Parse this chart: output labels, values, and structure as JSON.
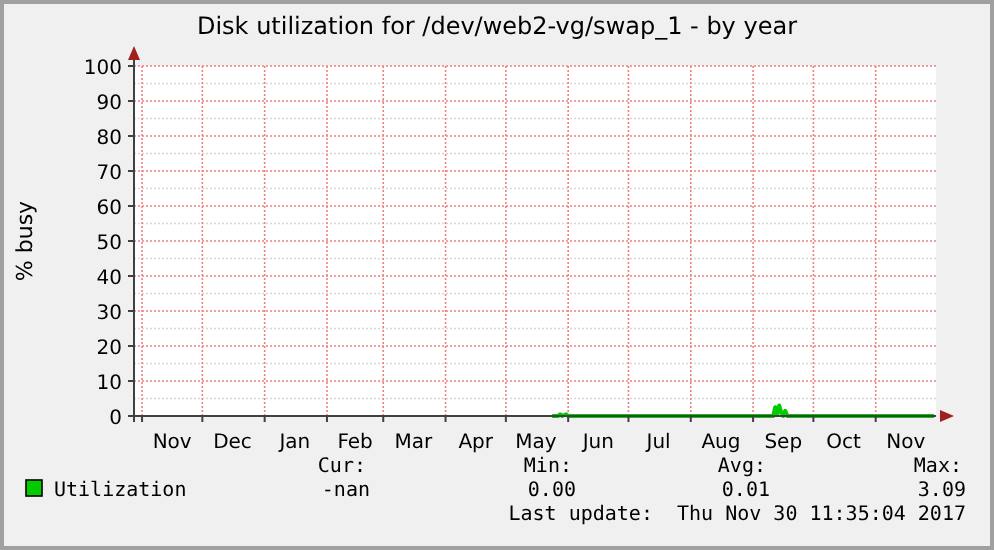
{
  "chart_data": {
    "type": "line",
    "title": "Disk utilization for /dev/web2-vg/swap_1 - by year",
    "ylabel": "% busy",
    "xlim": [
      "2016-10-28",
      "2017-12-01"
    ],
    "xticks": [
      {
        "value": "2016-11-16",
        "label": "Nov"
      },
      {
        "value": "2016-12-16",
        "label": "Dec"
      },
      {
        "value": "2017-01-16",
        "label": "Jan"
      },
      {
        "value": "2017-02-15",
        "label": "Feb"
      },
      {
        "value": "2017-03-16",
        "label": "Mar"
      },
      {
        "value": "2017-04-16",
        "label": "Apr"
      },
      {
        "value": "2017-05-16",
        "label": "May"
      },
      {
        "value": "2017-06-16",
        "label": "Jun"
      },
      {
        "value": "2017-07-16",
        "label": "Jul"
      },
      {
        "value": "2017-08-16",
        "label": "Aug"
      },
      {
        "value": "2017-09-16",
        "label": "Sep"
      },
      {
        "value": "2017-10-16",
        "label": "Oct"
      },
      {
        "value": "2017-11-16",
        "label": "Nov"
      }
    ],
    "ylim": [
      0,
      100
    ],
    "yticks": [
      0,
      10,
      20,
      30,
      40,
      50,
      60,
      70,
      80,
      90,
      100
    ],
    "grid": true,
    "legend": "bottom",
    "marker": "none",
    "line_style": "solid",
    "series": [
      {
        "name": "Utilization",
        "color": "#00cc00",
        "x": [
          "2017-05-24",
          "2017-05-27",
          "2017-05-28",
          "2017-05-29",
          "2017-05-31",
          "2017-06-01",
          "2017-09-11",
          "2017-09-12",
          "2017-09-13",
          "2017-09-14",
          "2017-09-15",
          "2017-09-16",
          "2017-09-17",
          "2017-09-18",
          "2017-11-30"
        ],
        "values": [
          0,
          0,
          0.5,
          0,
          0.5,
          0,
          0,
          2.5,
          0.5,
          3,
          1,
          0,
          1.5,
          0,
          0
        ]
      }
    ],
    "annotations": [
      "Cur:",
      "Min:",
      "Avg:",
      "Max:",
      "-nan",
      "0.00",
      "0.01",
      "3.09",
      "Last update:  Thu Nov 30 11:35:04 2017"
    ]
  }
}
